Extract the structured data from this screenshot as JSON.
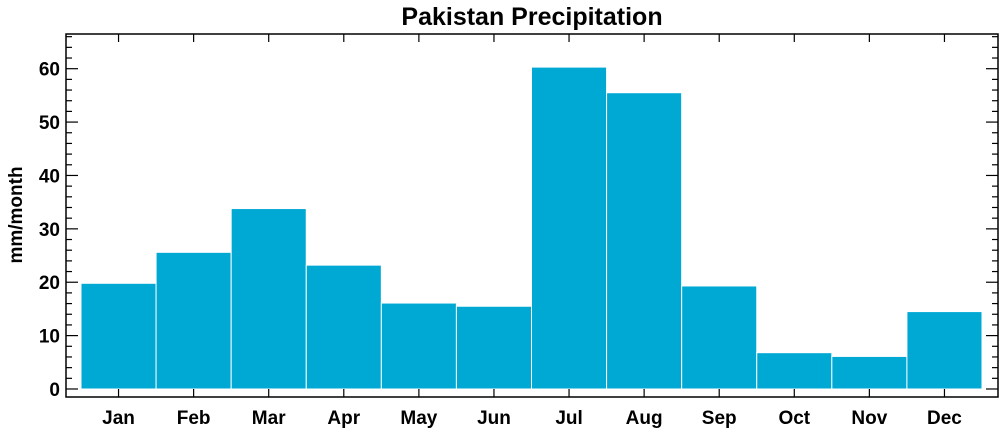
{
  "chart_data": {
    "type": "bar",
    "title": "Pakistan Precipitation",
    "xlabel": "",
    "ylabel": "mm/month",
    "categories": [
      "Jan",
      "Feb",
      "Mar",
      "Apr",
      "May",
      "Jun",
      "Jul",
      "Aug",
      "Sep",
      "Oct",
      "Nov",
      "Dec"
    ],
    "values": [
      19.8,
      25.6,
      33.8,
      23.2,
      16.1,
      15.5,
      60.3,
      55.5,
      19.3,
      6.8,
      6.1,
      14.5
    ],
    "ylim": [
      -1.5,
      66.5
    ],
    "yticks": [
      0,
      10,
      20,
      30,
      40,
      50,
      60
    ],
    "grid": false,
    "bar_color": "#00a8d4"
  }
}
